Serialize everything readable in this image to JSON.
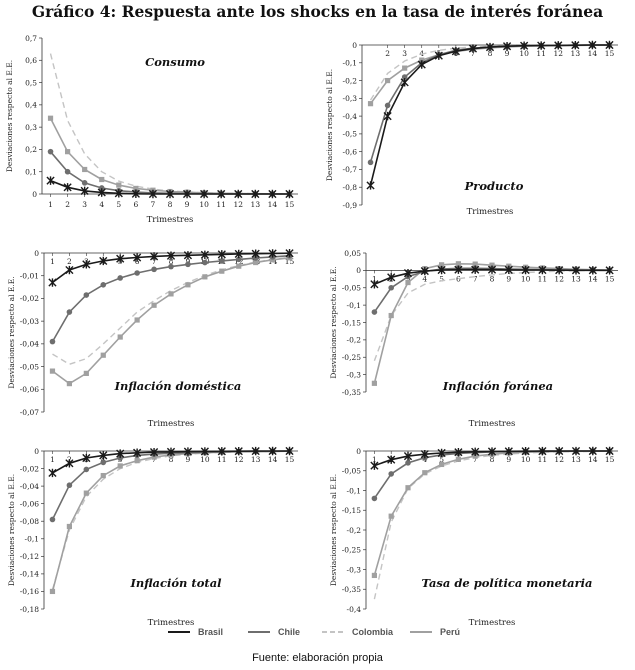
{
  "figure": {
    "title": "Gráfico 4: Respuesta ante los shocks en la tasa de interés foránea",
    "source": "Fuente: elaboración propia"
  },
  "colors": {
    "Brasil": "#1a1a1a",
    "Chile": "#6e6e6e",
    "Colombia": "#c4c4c4",
    "Perú": "#a0a0a0"
  },
  "legend": [
    {
      "name": "Brasil",
      "style": "solid-dark"
    },
    {
      "name": "Chile",
      "style": "solid-mid"
    },
    {
      "name": "Colombia",
      "style": "dashed-light"
    },
    {
      "name": "Perú",
      "style": "solid-light"
    }
  ],
  "chart_data": [
    {
      "type": "line",
      "title": "Consumo",
      "xlabel": "Trimestres",
      "ylabel": "Desviaciones respecto al E.E.",
      "x": [
        1,
        2,
        3,
        4,
        5,
        6,
        7,
        8,
        9,
        10,
        11,
        12,
        13,
        14,
        15
      ],
      "ylim": [
        0,
        0.7
      ],
      "yticks": [
        "0",
        "0,1",
        "0,2",
        "0,3",
        "0,4",
        "0,5",
        "0,6",
        "0,7"
      ],
      "ytick_values": [
        0,
        0.1,
        0.2,
        0.3,
        0.4,
        0.5,
        0.6,
        0.7
      ],
      "grid": false,
      "series": [
        {
          "name": "Brasil",
          "values": [
            0.06,
            0.03,
            0.014,
            0.007,
            0.003,
            0.001,
            0,
            0,
            0,
            0,
            0,
            0,
            0,
            0,
            0
          ]
        },
        {
          "name": "Chile",
          "values": [
            0.19,
            0.1,
            0.05,
            0.027,
            0.015,
            0.009,
            0.005,
            0.003,
            0.002,
            0.001,
            0,
            0,
            0,
            0,
            0
          ]
        },
        {
          "name": "Colombia",
          "values": [
            0.63,
            0.33,
            0.18,
            0.1,
            0.058,
            0.035,
            0.022,
            0.014,
            0.009,
            0.006,
            0.004,
            0.003,
            0.002,
            0.001,
            0.001
          ]
        },
        {
          "name": "Perú",
          "values": [
            0.34,
            0.19,
            0.11,
            0.065,
            0.04,
            0.025,
            0.017,
            0.011,
            0.008,
            0.005,
            0.003,
            0.002,
            0.001,
            0.001,
            0
          ]
        }
      ]
    },
    {
      "type": "line",
      "title": "Producto",
      "xlabel": "Trimestres",
      "ylabel": "Desviaciones respecto al E.E.",
      "x": [
        1,
        2,
        3,
        4,
        5,
        6,
        7,
        8,
        9,
        10,
        11,
        12,
        13,
        14,
        15
      ],
      "xticklabels": [
        "2",
        "3",
        "4",
        "5",
        "6",
        "7",
        "8",
        "9",
        "10",
        "11",
        "12",
        "13",
        "14",
        "15"
      ],
      "ylim": [
        -0.9,
        0
      ],
      "yticks": [
        "0",
        "-0,1",
        "-0,2",
        "-0,3",
        "-0,4",
        "-0,5",
        "-0,6",
        "-0,7",
        "-0,8",
        "-0,9"
      ],
      "ytick_values": [
        0,
        -0.1,
        -0.2,
        -0.3,
        -0.4,
        -0.5,
        -0.6,
        -0.7,
        -0.8,
        -0.9
      ],
      "grid": false,
      "series": [
        {
          "name": "Brasil",
          "values": [
            -0.79,
            -0.4,
            -0.21,
            -0.11,
            -0.06,
            -0.035,
            -0.02,
            -0.012,
            -0.007,
            -0.004,
            -0.003,
            -0.002,
            -0.001,
            0,
            0
          ]
        },
        {
          "name": "Chile",
          "values": [
            -0.66,
            -0.34,
            -0.18,
            -0.1,
            -0.055,
            -0.03,
            -0.018,
            -0.011,
            -0.007,
            -0.004,
            -0.003,
            -0.002,
            -0.001,
            0,
            0
          ]
        },
        {
          "name": "Colombia",
          "values": [
            -0.31,
            -0.16,
            -0.09,
            -0.052,
            -0.03,
            -0.018,
            -0.011,
            -0.007,
            -0.004,
            -0.003,
            -0.002,
            -0.001,
            -0.001,
            0,
            0
          ]
        },
        {
          "name": "Perú",
          "values": [
            -0.33,
            -0.2,
            -0.13,
            -0.085,
            -0.055,
            -0.036,
            -0.024,
            -0.016,
            -0.011,
            -0.007,
            -0.005,
            -0.003,
            -0.002,
            -0.001,
            -0.001
          ]
        }
      ]
    },
    {
      "type": "line",
      "title": "Inflación doméstica",
      "xlabel": "Trimestres",
      "ylabel": "Desviaciones respecto al E.E.",
      "x": [
        1,
        2,
        3,
        4,
        5,
        6,
        7,
        8,
        9,
        10,
        11,
        12,
        13,
        14,
        15
      ],
      "ylim": [
        -0.07,
        0
      ],
      "yticks": [
        "0",
        "-0,01",
        "-0,02",
        "-0,03",
        "-0,04",
        "-0,05",
        "-0,06",
        "-0,07"
      ],
      "ytick_values": [
        0,
        -0.01,
        -0.02,
        -0.03,
        -0.04,
        -0.05,
        -0.06,
        -0.07
      ],
      "grid": false,
      "series": [
        {
          "name": "Brasil",
          "values": [
            -0.013,
            -0.0075,
            -0.005,
            -0.0035,
            -0.0025,
            -0.002,
            -0.0015,
            -0.0012,
            -0.001,
            -0.0008,
            -0.0006,
            -0.0004,
            -0.0003,
            -0.0002,
            -0.0001
          ]
        },
        {
          "name": "Chile",
          "values": [
            -0.039,
            -0.026,
            -0.0185,
            -0.014,
            -0.011,
            -0.0088,
            -0.0072,
            -0.006,
            -0.005,
            -0.0042,
            -0.0035,
            -0.0028,
            -0.0022,
            -0.0017,
            -0.0012
          ]
        },
        {
          "name": "Colombia",
          "values": [
            -0.0445,
            -0.049,
            -0.0465,
            -0.04,
            -0.033,
            -0.026,
            -0.021,
            -0.0165,
            -0.013,
            -0.0098,
            -0.0074,
            -0.0055,
            -0.004,
            -0.0028,
            -0.002
          ]
        },
        {
          "name": "Perú",
          "values": [
            -0.052,
            -0.0575,
            -0.053,
            -0.045,
            -0.037,
            -0.0295,
            -0.023,
            -0.018,
            -0.014,
            -0.0105,
            -0.008,
            -0.0058,
            -0.0042,
            -0.003,
            -0.0021
          ]
        }
      ]
    },
    {
      "type": "line",
      "title": "Inflación foránea",
      "xlabel": "Trimestres",
      "ylabel": "Desviaciones respecto al E.E.",
      "x": [
        1,
        2,
        3,
        4,
        5,
        6,
        7,
        8,
        9,
        10,
        11,
        12,
        13,
        14,
        15
      ],
      "ylim": [
        -0.35,
        0.05
      ],
      "yticks": [
        "0,05",
        "0",
        "-0,05",
        "-0,1",
        "-0,15",
        "-0,2",
        "-0,25",
        "-0,3",
        "-0,35"
      ],
      "ytick_values": [
        0.05,
        0,
        -0.05,
        -0.1,
        -0.15,
        -0.2,
        -0.25,
        -0.3,
        -0.35
      ],
      "grid": false,
      "series": [
        {
          "name": "Brasil",
          "values": [
            -0.04,
            -0.02,
            -0.008,
            -0.002,
            0.001,
            0.002,
            0.002,
            0.002,
            0.0015,
            0.001,
            0.001,
            0.0005,
            0.0003,
            0.0002,
            0.0001
          ]
        },
        {
          "name": "Chile",
          "values": [
            -0.12,
            -0.05,
            -0.018,
            -0.003,
            0.004,
            0.006,
            0.006,
            0.005,
            0.004,
            0.003,
            0.002,
            0.0015,
            0.001,
            0.0006,
            0.0003
          ]
        },
        {
          "name": "Colombia",
          "values": [
            -0.26,
            -0.13,
            -0.065,
            -0.04,
            -0.03,
            -0.024,
            -0.018,
            -0.013,
            -0.009,
            -0.006,
            -0.004,
            -0.002,
            -0.001,
            -0.0005,
            0
          ]
        },
        {
          "name": "Perú",
          "values": [
            -0.325,
            -0.13,
            -0.035,
            0.005,
            0.016,
            0.019,
            0.018,
            0.015,
            0.012,
            0.009,
            0.007,
            0.005,
            0.003,
            0.002,
            0.001
          ]
        }
      ]
    },
    {
      "type": "line",
      "title": "Inflación total",
      "xlabel": "Trimestres",
      "ylabel": "Desviaciones respecto al E.E.",
      "x": [
        1,
        2,
        3,
        4,
        5,
        6,
        7,
        8,
        9,
        10,
        11,
        12,
        13,
        14,
        15
      ],
      "ylim": [
        -0.18,
        0
      ],
      "yticks": [
        "0",
        "-0,02",
        "-0,04",
        "-0,06",
        "-0,08",
        "-0,1",
        "-0,12",
        "-0,14",
        "-0,16",
        "-0,18"
      ],
      "ytick_values": [
        0,
        -0.02,
        -0.04,
        -0.06,
        -0.08,
        -0.1,
        -0.12,
        -0.14,
        -0.16,
        -0.18
      ],
      "grid": false,
      "series": [
        {
          "name": "Brasil",
          "values": [
            -0.025,
            -0.014,
            -0.008,
            -0.005,
            -0.003,
            -0.002,
            -0.0013,
            -0.001,
            -0.0007,
            -0.0005,
            -0.0003,
            -0.0002,
            -0.0001,
            0,
            0
          ]
        },
        {
          "name": "Chile",
          "values": [
            -0.078,
            -0.039,
            -0.021,
            -0.013,
            -0.008,
            -0.005,
            -0.0035,
            -0.0025,
            -0.0018,
            -0.0013,
            -0.001,
            -0.0007,
            -0.0005,
            -0.0003,
            -0.0002
          ]
        },
        {
          "name": "Colombia",
          "values": [
            -0.158,
            -0.09,
            -0.052,
            -0.032,
            -0.02,
            -0.013,
            -0.0085,
            -0.0055,
            -0.0036,
            -0.0024,
            -0.0016,
            -0.001,
            -0.0007,
            -0.0004,
            -0.0002
          ]
        },
        {
          "name": "Perú",
          "values": [
            -0.16,
            -0.086,
            -0.048,
            -0.028,
            -0.017,
            -0.011,
            -0.007,
            -0.0045,
            -0.003,
            -0.002,
            -0.0013,
            -0.0008,
            -0.0005,
            -0.0003,
            -0.0001
          ]
        }
      ]
    },
    {
      "type": "line",
      "title": "Tasa de política monetaria",
      "xlabel": "Trimestres",
      "ylabel": "Desviaciones respecto al E.E.",
      "x": [
        1,
        2,
        3,
        4,
        5,
        6,
        7,
        8,
        9,
        10,
        11,
        12,
        13,
        14,
        15
      ],
      "ylim": [
        -0.4,
        0
      ],
      "yticks": [
        "0",
        "-0,05",
        "-0,1",
        "-0,15",
        "-0,2",
        "-0,25",
        "-0,3",
        "-0,35",
        "-0,4"
      ],
      "ytick_values": [
        0,
        -0.05,
        -0.1,
        -0.15,
        -0.2,
        -0.25,
        -0.3,
        -0.35,
        -0.4
      ],
      "grid": false,
      "series": [
        {
          "name": "Brasil",
          "values": [
            -0.037,
            -0.022,
            -0.013,
            -0.008,
            -0.005,
            -0.003,
            -0.002,
            -0.0013,
            -0.0008,
            -0.0005,
            -0.0003,
            -0.0002,
            -0.0001,
            0,
            0
          ]
        },
        {
          "name": "Chile",
          "values": [
            -0.12,
            -0.058,
            -0.03,
            -0.017,
            -0.01,
            -0.006,
            -0.004,
            -0.0025,
            -0.0016,
            -0.001,
            -0.0006,
            -0.0004,
            -0.0002,
            -0.0001,
            0
          ]
        },
        {
          "name": "Colombia",
          "values": [
            -0.375,
            -0.18,
            -0.095,
            -0.058,
            -0.038,
            -0.025,
            -0.017,
            -0.011,
            -0.0075,
            -0.005,
            -0.0033,
            -0.0022,
            -0.0014,
            -0.0009,
            -0.0005
          ]
        },
        {
          "name": "Perú",
          "values": [
            -0.315,
            -0.165,
            -0.093,
            -0.055,
            -0.034,
            -0.021,
            -0.013,
            -0.008,
            -0.005,
            -0.003,
            -0.002,
            -0.0012,
            -0.0007,
            -0.0004,
            -0.0002
          ]
        }
      ]
    }
  ]
}
